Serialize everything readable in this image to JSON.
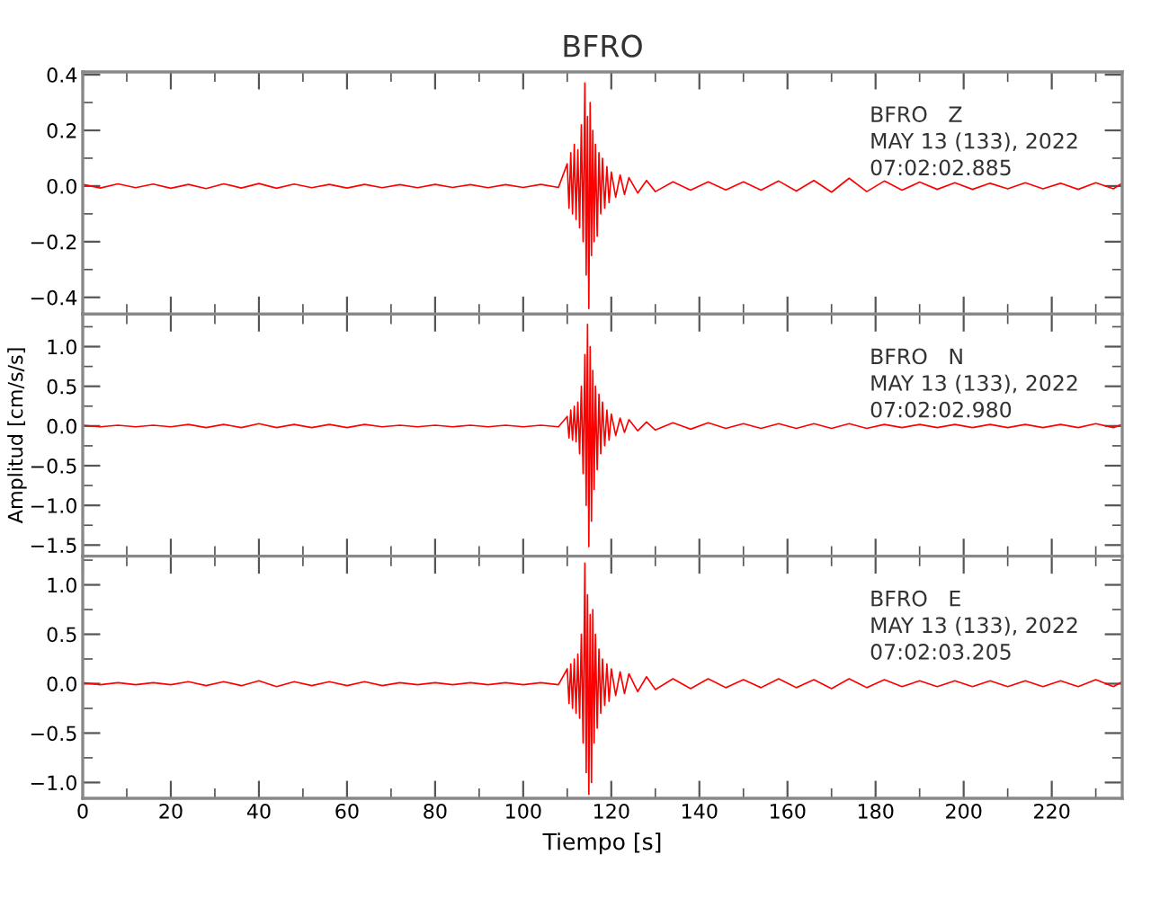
{
  "chart_data": [
    {
      "type": "line",
      "title": "BFRO",
      "annotations": [
        "BFRO   Z",
        "MAY 13 (133), 2022",
        "07:02:02.885"
      ],
      "tick_labels": "y",
      "xlim": [
        0,
        236
      ],
      "xticks": [
        0,
        20,
        40,
        60,
        80,
        100,
        120,
        140,
        160,
        180,
        200,
        220
      ],
      "ylim": [
        -0.46,
        0.41
      ],
      "yticks": [
        {
          "value": -0.4,
          "label": "−0.4"
        },
        {
          "value": -0.2,
          "label": "−0.2"
        },
        {
          "value": 0,
          "label": "0.0"
        },
        {
          "value": 0.2,
          "label": "0.2"
        },
        {
          "value": 0.4,
          "label": "0.4"
        }
      ],
      "series": [
        {
          "color": "#ff0000",
          "x": [
            0,
            4,
            8,
            12,
            16,
            20,
            24,
            28,
            32,
            36,
            40,
            44,
            48,
            52,
            56,
            60,
            64,
            68,
            72,
            76,
            80,
            84,
            88,
            92,
            96,
            100,
            104,
            108,
            110,
            110.4,
            110.8,
            111.2,
            111.6,
            112,
            112.4,
            112.8,
            113.2,
            113.6,
            114,
            114.3,
            114.6,
            114.9,
            115.2,
            115.5,
            115.8,
            116.1,
            116.4,
            116.8,
            117.2,
            117.6,
            118,
            118.5,
            119,
            119.5,
            120,
            121,
            122,
            123,
            124,
            126,
            128,
            130,
            134,
            138,
            142,
            146,
            150,
            154,
            158,
            162,
            166,
            170,
            174,
            178,
            182,
            186,
            190,
            194,
            198,
            202,
            206,
            210,
            214,
            218,
            222,
            226,
            230,
            234,
            236
          ],
          "values": [
            0.006,
            -0.007,
            0.008,
            -0.006,
            0.007,
            -0.008,
            0.006,
            -0.009,
            0.008,
            -0.007,
            0.009,
            -0.008,
            0.007,
            -0.006,
            0.006,
            -0.007,
            0.006,
            -0.006,
            0.005,
            -0.006,
            0.006,
            -0.005,
            0.005,
            -0.006,
            0.005,
            -0.005,
            0.006,
            -0.005,
            0.08,
            -0.08,
            0.12,
            -0.1,
            0.15,
            -0.12,
            0.13,
            -0.15,
            0.22,
            -0.2,
            0.37,
            -0.32,
            0.25,
            -0.44,
            0.3,
            -0.25,
            0.2,
            -0.2,
            0.15,
            -0.18,
            0.12,
            -0.1,
            0.1,
            -0.08,
            0.07,
            -0.06,
            0.05,
            -0.04,
            0.04,
            -0.03,
            0.03,
            -0.025,
            0.02,
            -0.02,
            0.015,
            -0.015,
            0.015,
            -0.014,
            0.015,
            -0.015,
            0.018,
            -0.018,
            0.02,
            -0.022,
            0.028,
            -0.02,
            0.018,
            -0.015,
            0.014,
            -0.012,
            0.012,
            -0.012,
            0.01,
            -0.01,
            0.012,
            -0.01,
            0.01,
            -0.012,
            0.012,
            -0.01,
            0.01
          ]
        }
      ]
    },
    {
      "type": "line",
      "ylabel": "Amplitud [cm/s/s]",
      "annotations": [
        "BFRO   N",
        "MAY 13 (133), 2022",
        "07:02:02.980"
      ],
      "tick_labels": "y",
      "xlim": [
        0,
        236
      ],
      "xticks": [
        0,
        20,
        40,
        60,
        80,
        100,
        120,
        140,
        160,
        180,
        200,
        220
      ],
      "ylim": [
        -1.64,
        1.41
      ],
      "yticks": [
        {
          "value": -1.5,
          "label": "−1.5"
        },
        {
          "value": -1,
          "label": "−1.0"
        },
        {
          "value": -0.5,
          "label": "−0.5"
        },
        {
          "value": 0,
          "label": "0.0"
        },
        {
          "value": 0.5,
          "label": "0.5"
        },
        {
          "value": 1,
          "label": "1.0"
        }
      ],
      "series": [
        {
          "color": "#ff0000",
          "x": [
            0,
            4,
            8,
            12,
            16,
            20,
            24,
            28,
            32,
            36,
            40,
            44,
            48,
            52,
            56,
            60,
            64,
            68,
            72,
            76,
            80,
            84,
            88,
            92,
            96,
            100,
            104,
            108,
            110,
            110.4,
            110.8,
            111.2,
            111.6,
            112,
            112.4,
            112.8,
            113.2,
            113.6,
            114,
            114.3,
            114.6,
            114.9,
            115.2,
            115.5,
            115.8,
            116.1,
            116.4,
            116.8,
            117.2,
            117.6,
            118,
            118.5,
            119,
            119.5,
            120,
            121,
            122,
            123,
            124,
            126,
            128,
            130,
            134,
            138,
            142,
            146,
            150,
            154,
            158,
            162,
            166,
            170,
            174,
            178,
            182,
            186,
            190,
            194,
            198,
            202,
            206,
            210,
            214,
            218,
            222,
            226,
            230,
            234,
            236
          ],
          "values": [
            0.01,
            -0.01,
            0.01,
            -0.01,
            0.01,
            -0.01,
            0.02,
            -0.02,
            0.02,
            -0.02,
            0.03,
            -0.02,
            0.02,
            -0.02,
            0.02,
            -0.02,
            0.02,
            -0.01,
            0.01,
            -0.01,
            0.01,
            -0.01,
            0.01,
            -0.01,
            0.01,
            -0.01,
            0.01,
            -0.01,
            0.12,
            -0.15,
            0.2,
            -0.18,
            0.25,
            -0.2,
            0.3,
            -0.35,
            0.5,
            -0.6,
            0.9,
            -1.0,
            1.28,
            -1.52,
            1.0,
            -1.2,
            0.7,
            -0.8,
            0.5,
            -0.55,
            0.4,
            -0.35,
            0.3,
            -0.25,
            0.2,
            -0.18,
            0.15,
            -0.12,
            0.1,
            -0.08,
            0.08,
            -0.06,
            0.05,
            -0.05,
            0.04,
            -0.04,
            0.04,
            -0.03,
            0.03,
            -0.03,
            0.03,
            -0.03,
            0.03,
            -0.03,
            0.03,
            -0.03,
            0.02,
            -0.02,
            0.02,
            -0.02,
            0.02,
            -0.02,
            0.02,
            -0.02,
            0.02,
            -0.02,
            0.02,
            -0.02,
            0.03,
            -0.02,
            0.02
          ]
        }
      ]
    },
    {
      "type": "line",
      "xlabel": "Tiempo [s]",
      "annotations": [
        "BFRO   E",
        "MAY 13 (133), 2022",
        "07:02:03.205"
      ],
      "xlim": [
        0,
        236
      ],
      "xticks": [
        0,
        20,
        40,
        60,
        80,
        100,
        120,
        140,
        160,
        180,
        200,
        220
      ],
      "ylim": [
        -1.16,
        1.29
      ],
      "yticks": [
        {
          "value": -1,
          "label": "−1.0"
        },
        {
          "value": -0.5,
          "label": "−0.5"
        },
        {
          "value": 0,
          "label": "0.0"
        },
        {
          "value": 0.5,
          "label": "0.5"
        },
        {
          "value": 1,
          "label": "1.0"
        }
      ],
      "series": [
        {
          "color": "#ff0000",
          "x": [
            0,
            4,
            8,
            12,
            16,
            20,
            24,
            28,
            32,
            36,
            40,
            44,
            48,
            52,
            56,
            60,
            64,
            68,
            72,
            76,
            80,
            84,
            88,
            92,
            96,
            100,
            104,
            108,
            110,
            110.4,
            110.8,
            111.2,
            111.6,
            112,
            112.4,
            112.8,
            113.2,
            113.6,
            114,
            114.3,
            114.6,
            114.9,
            115.2,
            115.5,
            115.8,
            116.1,
            116.4,
            116.8,
            117.2,
            117.6,
            118,
            118.5,
            119,
            119.5,
            120,
            121,
            122,
            123,
            124,
            126,
            128,
            130,
            134,
            138,
            142,
            146,
            150,
            154,
            158,
            162,
            166,
            170,
            174,
            178,
            182,
            186,
            190,
            194,
            198,
            202,
            206,
            210,
            214,
            218,
            222,
            226,
            230,
            234,
            236
          ],
          "values": [
            0.01,
            -0.01,
            0.01,
            -0.01,
            0.01,
            -0.01,
            0.02,
            -0.02,
            0.02,
            -0.02,
            0.03,
            -0.03,
            0.02,
            -0.02,
            0.02,
            -0.02,
            0.02,
            -0.02,
            0.01,
            -0.01,
            0.01,
            -0.01,
            0.01,
            -0.01,
            0.01,
            -0.01,
            0.01,
            -0.01,
            0.15,
            -0.2,
            0.2,
            -0.25,
            0.25,
            -0.3,
            0.3,
            -0.35,
            0.5,
            -0.6,
            1.22,
            -0.9,
            0.9,
            -1.12,
            0.7,
            -1.0,
            0.75,
            -0.6,
            0.5,
            -0.45,
            0.35,
            -0.3,
            0.25,
            -0.22,
            0.2,
            -0.18,
            0.15,
            -0.12,
            0.12,
            -0.1,
            0.1,
            -0.08,
            0.07,
            -0.06,
            0.05,
            -0.05,
            0.05,
            -0.04,
            0.04,
            -0.04,
            0.05,
            -0.04,
            0.04,
            -0.05,
            0.05,
            -0.04,
            0.04,
            -0.03,
            0.03,
            -0.03,
            0.03,
            -0.03,
            0.03,
            -0.03,
            0.03,
            -0.03,
            0.03,
            -0.03,
            0.04,
            -0.03,
            0.02
          ]
        }
      ]
    }
  ]
}
